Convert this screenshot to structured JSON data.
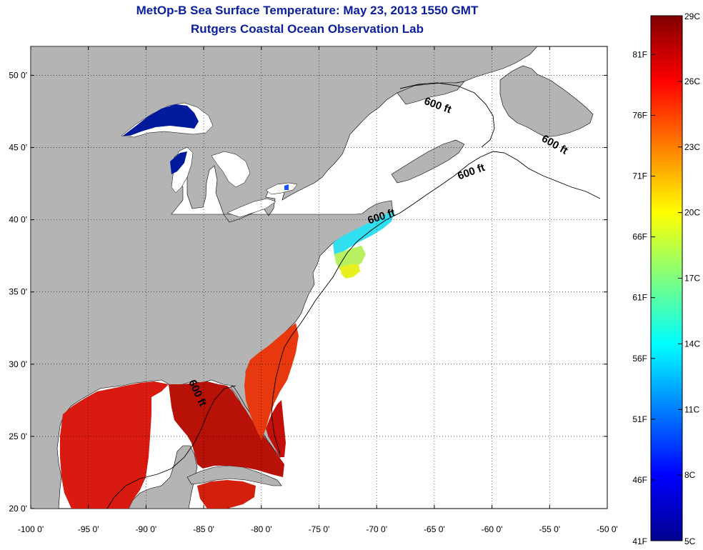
{
  "title_line1": "MetOp-B Sea Surface Temperature:  May 23, 2013 1550 GMT",
  "title_line2": "Rutgers Coastal Ocean Observation Lab",
  "map": {
    "lon_range": [
      -100,
      -50
    ],
    "lat_range": [
      20,
      52
    ],
    "lon_ticks": [
      {
        "value": -100,
        "label": "-100 0'"
      },
      {
        "value": -95,
        "label": "-95 0'"
      },
      {
        "value": -90,
        "label": "-90 0'"
      },
      {
        "value": -85,
        "label": "-85 0'"
      },
      {
        "value": -80,
        "label": "-80 0'"
      },
      {
        "value": -75,
        "label": "-75 0'"
      },
      {
        "value": -70,
        "label": "-70 0'"
      },
      {
        "value": -65,
        "label": "-65 0'"
      },
      {
        "value": -60,
        "label": "-60 0'"
      },
      {
        "value": -55,
        "label": "-55 0'"
      },
      {
        "value": -50,
        "label": "-50 0'"
      }
    ],
    "lat_ticks": [
      {
        "value": 20,
        "label": "20 0'"
      },
      {
        "value": 25,
        "label": "25 0'"
      },
      {
        "value": 30,
        "label": "30 0'"
      },
      {
        "value": 35,
        "label": "35 0'"
      },
      {
        "value": 40,
        "label": "40 0'"
      },
      {
        "value": 45,
        "label": "45 0'"
      },
      {
        "value": 50,
        "label": "50 0'"
      }
    ],
    "grid": "dotted",
    "land_color": "#b4b4b4",
    "water_color": "#ffffff",
    "contour_labels": [
      {
        "text": "600 ft",
        "lon": -64.8,
        "lat": 47.7
      },
      {
        "text": "600 ft",
        "lon": -54.7,
        "lat": 45.0
      },
      {
        "text": "600 ft",
        "lon": -61.7,
        "lat": 43.1
      },
      {
        "text": "600 ft",
        "lon": -69.5,
        "lat": 40.0
      },
      {
        "text": "600 ft",
        "lon": -85.8,
        "lat": 27.9
      }
    ]
  },
  "colorbar": {
    "min_c": 5,
    "max_c": 29,
    "celsius_ticks": [
      {
        "value": 29,
        "label": "29C"
      },
      {
        "value": 26,
        "label": "26C"
      },
      {
        "value": 23,
        "label": "23C"
      },
      {
        "value": 20,
        "label": "20C"
      },
      {
        "value": 17,
        "label": "17C"
      },
      {
        "value": 14,
        "label": "14C"
      },
      {
        "value": 11,
        "label": "11C"
      },
      {
        "value": 8,
        "label": "8C"
      },
      {
        "value": 5,
        "label": "5C"
      }
    ],
    "fahrenheit_ticks": [
      {
        "value": 81,
        "label": "81F"
      },
      {
        "value": 76,
        "label": "76F"
      },
      {
        "value": 71,
        "label": "71F"
      },
      {
        "value": 66,
        "label": "66F"
      },
      {
        "value": 61,
        "label": "61F"
      },
      {
        "value": 56,
        "label": "56F"
      },
      {
        "value": 51,
        "label": "51F"
      },
      {
        "value": 46,
        "label": "46F"
      },
      {
        "value": 41,
        "label": "41F"
      }
    ],
    "colormap": "jet"
  }
}
